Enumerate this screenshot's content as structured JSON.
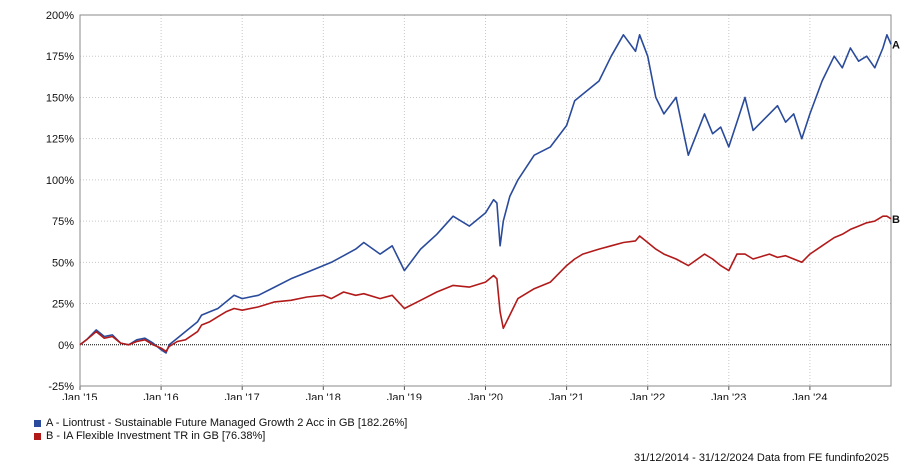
{
  "chart_data": {
    "type": "line",
    "xlabel": "",
    "ylabel": "",
    "x_tick_labels": [
      "Jan '15",
      "Jan '16",
      "Jan '17",
      "Jan '18",
      "Jan '19",
      "Jan '20",
      "Jan '21",
      "Jan '22",
      "Jan '23",
      "Jan '24"
    ],
    "y_tick_labels": [
      "-25%",
      "0%",
      "25%",
      "50%",
      "75%",
      "100%",
      "125%",
      "150%",
      "175%",
      "200%"
    ],
    "xlim": [
      2015.0,
      2025.0
    ],
    "ylim": [
      -25,
      200
    ],
    "grid": true,
    "legend_position": "bottom-left",
    "series": [
      {
        "name": "A - Liontrust - Sustainable Future Managed Growth 2 Acc in GB [182.26%]",
        "end_label": "A",
        "color": "#2a4b9b",
        "x": [
          2015.0,
          2015.08,
          2015.2,
          2015.3,
          2015.4,
          2015.5,
          2015.6,
          2015.7,
          2015.8,
          2015.9,
          2016.0,
          2016.06,
          2016.1,
          2016.2,
          2016.3,
          2016.45,
          2016.5,
          2016.6,
          2016.7,
          2016.8,
          2016.9,
          2017.0,
          2017.2,
          2017.4,
          2017.6,
          2017.8,
          2018.0,
          2018.1,
          2018.25,
          2018.4,
          2018.5,
          2018.7,
          2018.85,
          2019.0,
          2019.2,
          2019.4,
          2019.6,
          2019.8,
          2020.0,
          2020.1,
          2020.14,
          2020.18,
          2020.22,
          2020.3,
          2020.4,
          2020.6,
          2020.8,
          2021.0,
          2021.1,
          2021.2,
          2021.4,
          2021.55,
          2021.7,
          2021.85,
          2021.9,
          2022.0,
          2022.1,
          2022.2,
          2022.35,
          2022.5,
          2022.7,
          2022.8,
          2022.9,
          2023.0,
          2023.1,
          2023.2,
          2023.3,
          2023.5,
          2023.6,
          2023.7,
          2023.8,
          2023.9,
          2024.0,
          2024.15,
          2024.3,
          2024.4,
          2024.5,
          2024.6,
          2024.7,
          2024.8,
          2024.9,
          2024.95,
          2025.0
        ],
        "y": [
          0,
          3,
          9,
          5,
          6,
          1,
          0,
          3,
          4,
          1,
          -3,
          -5,
          0,
          4,
          8,
          14,
          18,
          20,
          22,
          26,
          30,
          28,
          30,
          35,
          40,
          44,
          48,
          50,
          54,
          58,
          62,
          55,
          60,
          45,
          58,
          67,
          78,
          72,
          80,
          88,
          86,
          60,
          75,
          90,
          100,
          115,
          120,
          133,
          148,
          152,
          160,
          175,
          188,
          178,
          188,
          175,
          150,
          140,
          150,
          115,
          140,
          128,
          132,
          120,
          135,
          150,
          130,
          140,
          145,
          135,
          140,
          125,
          140,
          160,
          175,
          168,
          180,
          172,
          175,
          168,
          180,
          188,
          182.26
        ]
      },
      {
        "name": "B - IA Flexible Investment TR in GB [76.38%]",
        "end_label": "B",
        "color": "#b21a1a",
        "x": [
          2015.0,
          2015.08,
          2015.2,
          2015.3,
          2015.4,
          2015.5,
          2015.6,
          2015.7,
          2015.8,
          2015.9,
          2016.0,
          2016.06,
          2016.1,
          2016.2,
          2016.3,
          2016.45,
          2016.5,
          2016.6,
          2016.7,
          2016.8,
          2016.9,
          2017.0,
          2017.2,
          2017.4,
          2017.6,
          2017.8,
          2018.0,
          2018.1,
          2018.25,
          2018.4,
          2018.5,
          2018.7,
          2018.85,
          2019.0,
          2019.2,
          2019.4,
          2019.6,
          2019.8,
          2020.0,
          2020.1,
          2020.14,
          2020.18,
          2020.22,
          2020.3,
          2020.4,
          2020.6,
          2020.8,
          2021.0,
          2021.1,
          2021.2,
          2021.4,
          2021.55,
          2021.7,
          2021.85,
          2021.9,
          2022.0,
          2022.1,
          2022.2,
          2022.35,
          2022.5,
          2022.7,
          2022.8,
          2022.9,
          2023.0,
          2023.1,
          2023.2,
          2023.3,
          2023.5,
          2023.6,
          2023.7,
          2023.8,
          2023.9,
          2024.0,
          2024.15,
          2024.3,
          2024.4,
          2024.5,
          2024.6,
          2024.7,
          2024.8,
          2024.9,
          2024.95,
          2025.0
        ],
        "y": [
          0,
          3,
          8,
          4,
          5,
          1,
          0,
          2,
          3,
          0,
          -2,
          -4,
          -1,
          2,
          3,
          8,
          12,
          14,
          17,
          20,
          22,
          21,
          23,
          26,
          27,
          29,
          30,
          28,
          32,
          30,
          31,
          28,
          30,
          22,
          27,
          32,
          36,
          35,
          38,
          42,
          40,
          20,
          10,
          18,
          28,
          34,
          38,
          48,
          52,
          55,
          58,
          60,
          62,
          63,
          66,
          62,
          58,
          55,
          52,
          48,
          55,
          52,
          48,
          45,
          55,
          55,
          52,
          55,
          53,
          54,
          52,
          50,
          55,
          60,
          65,
          67,
          70,
          72,
          74,
          75,
          78,
          78,
          76.38
        ]
      }
    ]
  },
  "footer": {
    "text": "31/12/2014 - 31/12/2024 Data from FE fundinfo2025"
  }
}
